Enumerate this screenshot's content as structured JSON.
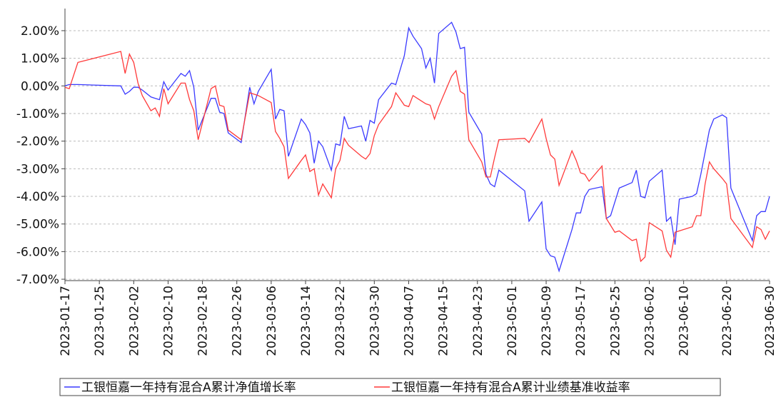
{
  "chart_data": {
    "type": "line",
    "x": [
      "2023-01-17",
      "2023-01-18",
      "2023-01-20",
      "2023-01-30",
      "2023-01-31",
      "2023-02-01",
      "2023-02-02",
      "2023-02-03",
      "2023-02-04",
      "2023-02-06",
      "2023-02-07",
      "2023-02-08",
      "2023-02-09",
      "2023-02-10",
      "2023-02-13",
      "2023-02-14",
      "2023-02-15",
      "2023-02-16",
      "2023-02-17",
      "2023-02-20",
      "2023-02-21",
      "2023-02-22",
      "2023-02-23",
      "2023-02-24",
      "2023-02-27",
      "2023-03-01",
      "2023-03-02",
      "2023-03-03",
      "2023-03-06",
      "2023-03-07",
      "2023-03-08",
      "2023-03-09",
      "2023-03-10",
      "2023-03-13",
      "2023-03-14",
      "2023-03-15",
      "2023-03-16",
      "2023-03-17",
      "2023-03-18",
      "2023-03-20",
      "2023-03-21",
      "2023-03-22",
      "2023-03-23",
      "2023-03-24",
      "2023-03-27",
      "2023-03-28",
      "2023-03-29",
      "2023-03-30",
      "2023-03-31",
      "2023-04-03",
      "2023-04-04",
      "2023-04-06",
      "2023-04-07",
      "2023-04-08",
      "2023-04-10",
      "2023-04-11",
      "2023-04-12",
      "2023-04-13",
      "2023-04-14",
      "2023-04-17",
      "2023-04-18",
      "2023-04-19",
      "2023-04-20",
      "2023-04-21",
      "2023-04-24",
      "2023-04-25",
      "2023-04-26",
      "2023-04-27",
      "2023-04-28",
      "2023-05-04",
      "2023-05-05",
      "2023-05-08",
      "2023-05-09",
      "2023-05-10",
      "2023-05-11",
      "2023-05-12",
      "2023-05-15",
      "2023-05-16",
      "2023-05-17",
      "2023-05-18",
      "2023-05-19",
      "2023-05-22",
      "2023-05-23",
      "2023-05-24",
      "2023-05-25",
      "2023-05-26",
      "2023-05-29",
      "2023-05-30",
      "2023-05-31",
      "2023-06-01",
      "2023-06-02",
      "2023-06-05",
      "2023-06-06",
      "2023-06-07",
      "2023-06-08",
      "2023-06-09",
      "2023-06-12",
      "2023-06-13",
      "2023-06-14",
      "2023-06-15",
      "2023-06-16",
      "2023-06-17",
      "2023-06-19",
      "2023-06-20",
      "2023-06-21",
      "2023-06-26",
      "2023-06-27",
      "2023-06-28",
      "2023-06-29",
      "2023-06-30"
    ],
    "series": [
      {
        "name": "工银恒嘉一年持有混合A累计净值增长率",
        "color": "#3a3aff",
        "values": [
          0.0,
          0.05,
          0.05,
          0.0,
          -0.3,
          -0.2,
          -0.05,
          -0.05,
          -0.15,
          -0.4,
          -0.45,
          -0.5,
          0.15,
          -0.15,
          0.45,
          0.35,
          0.55,
          -0.05,
          -1.6,
          -0.45,
          -0.45,
          -0.95,
          -1.0,
          -1.7,
          -2.05,
          -0.05,
          -0.65,
          -0.2,
          0.6,
          -1.2,
          -0.85,
          -0.9,
          -2.55,
          -1.2,
          -1.4,
          -1.7,
          -2.8,
          -2.0,
          -2.2,
          -3.05,
          -2.1,
          -2.15,
          -1.1,
          -1.55,
          -1.45,
          -2.0,
          -1.25,
          -1.35,
          -0.5,
          0.1,
          0.05,
          1.1,
          2.1,
          1.8,
          1.35,
          0.65,
          1.0,
          0.1,
          1.9,
          2.3,
          1.95,
          1.35,
          1.4,
          -0.95,
          -1.75,
          -3.2,
          -3.55,
          -3.65,
          -3.05,
          -3.8,
          -4.9,
          -4.2,
          -5.9,
          -6.15,
          -6.2,
          -6.7,
          -5.2,
          -4.6,
          -4.6,
          -4.0,
          -3.75,
          -3.65,
          -4.8,
          -4.7,
          -4.2,
          -3.7,
          -3.5,
          -3.05,
          -4.0,
          -4.05,
          -3.45,
          -3.05,
          -4.9,
          -4.75,
          -5.75,
          -4.1,
          -4.0,
          -3.9,
          -3.2,
          -2.4,
          -1.6,
          -1.2,
          -1.05,
          -1.15,
          -3.7,
          -5.6,
          -4.7,
          -4.55,
          -4.55,
          -4.0
        ]
      },
      {
        "name": "工银恒嘉一年持有混合A累计业绩基准收益率",
        "color": "#ff3a3a",
        "values": [
          -0.05,
          -0.1,
          0.85,
          1.25,
          0.45,
          1.15,
          0.85,
          0.1,
          -0.35,
          -0.9,
          -0.8,
          -1.1,
          -0.1,
          -0.65,
          0.1,
          0.1,
          -0.5,
          -0.9,
          -1.95,
          -0.1,
          0.0,
          -0.7,
          -0.75,
          -1.6,
          -1.95,
          -0.25,
          -0.3,
          -0.35,
          -0.6,
          -1.65,
          -1.9,
          -2.2,
          -3.35,
          -2.7,
          -2.5,
          -3.1,
          -3.0,
          -3.95,
          -3.55,
          -4.05,
          -3.0,
          -2.7,
          -1.9,
          -2.15,
          -2.55,
          -2.65,
          -2.45,
          -1.8,
          -1.4,
          -0.75,
          -0.25,
          -0.7,
          -0.75,
          -0.35,
          -0.55,
          -0.65,
          -0.7,
          -1.2,
          -0.75,
          0.35,
          0.55,
          -0.2,
          -0.3,
          -1.95,
          -2.75,
          -3.3,
          -3.3,
          -2.6,
          -1.95,
          -1.9,
          -2.05,
          -1.2,
          -1.9,
          -2.5,
          -2.65,
          -3.6,
          -2.35,
          -2.7,
          -3.15,
          -3.2,
          -3.45,
          -2.9,
          -4.8,
          -5.05,
          -5.3,
          -5.25,
          -5.6,
          -5.55,
          -6.35,
          -6.2,
          -4.95,
          -5.25,
          -5.95,
          -6.2,
          -5.3,
          -5.25,
          -5.1,
          -4.7,
          -4.7,
          -3.55,
          -2.75,
          -3.0,
          -3.35,
          -3.55,
          -4.8,
          -5.85,
          -5.1,
          -5.2,
          -5.55,
          -5.25
        ]
      }
    ],
    "xlim": [
      "2023-01-17",
      "2023-06-30"
    ],
    "xticks": [
      "2023-01-17",
      "2023-01-25",
      "2023-02-02",
      "2023-02-10",
      "2023-02-18",
      "2023-02-26",
      "2023-03-06",
      "2023-03-14",
      "2023-03-22",
      "2023-03-30",
      "2023-04-07",
      "2023-04-15",
      "2023-04-23",
      "2023-05-01",
      "2023-05-09",
      "2023-05-17",
      "2023-05-25",
      "2023-06-02",
      "2023-06-10",
      "2023-06-20",
      "2023-06-30"
    ],
    "ylim": [
      -7.05,
      2.8
    ],
    "yticks": [
      {
        "value": 2,
        "label": "2.00%"
      },
      {
        "value": 1,
        "label": "1.00%"
      },
      {
        "value": 0,
        "label": "0.00%"
      },
      {
        "value": -1,
        "label": "-1.00%"
      },
      {
        "value": -2,
        "label": "-2.00%"
      },
      {
        "value": -3,
        "label": "-3.00%"
      },
      {
        "value": -4,
        "label": "-4.00%"
      },
      {
        "value": -5,
        "label": "-5.00%"
      },
      {
        "value": -6,
        "label": "-6.00%"
      },
      {
        "value": -7,
        "label": "-7.00%"
      }
    ],
    "grid": true
  }
}
